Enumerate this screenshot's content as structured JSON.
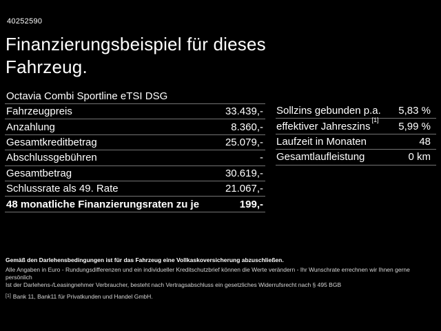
{
  "colors": {
    "background": "#000000",
    "text": "#ffffff",
    "divider": "#757575"
  },
  "page": {
    "vehicle_id": "40252590",
    "title_line1": "Finanzierungsbeispiel für dieses",
    "title_line2": "Fahrzeug.",
    "subtitle": "Octavia Combi Sportline eTSI DSG"
  },
  "tables": {
    "left": {
      "rows": [
        {
          "label": "Fahrzeugpreis",
          "value": "33.439,-"
        },
        {
          "label": "Anzahlung",
          "value": "8.360,-"
        },
        {
          "label": "Gesamtkreditbetrag",
          "value": "25.079,-"
        },
        {
          "label": "Abschlussgebühren",
          "value": "-"
        },
        {
          "label": "Gesamtbetrag",
          "value": "30.619,-"
        },
        {
          "label": "Schlussrate als 49. Rate",
          "value": "21.067,-"
        },
        {
          "label": "48 monatliche Finanzierungsraten zu je",
          "value": "199,-"
        }
      ]
    },
    "right": {
      "rows": [
        {
          "label": "Sollzins gebunden p.a.",
          "value": "5,83 %"
        },
        {
          "label": "effektiver Jahreszins",
          "sup": "[1]",
          "value": "5,99 %"
        },
        {
          "label": "Laufzeit in Monaten",
          "value": "48"
        },
        {
          "label": "Gesamtlaufleistung",
          "value": "0 km"
        }
      ]
    }
  },
  "footnotes": {
    "insurance_note": "Gemäß den Darlehensbedingungen ist für das Fahrzeug eine Vollkaskoversicherung abzuschließen.",
    "disclaimer": "Alle Angaben in Euro - Rundungsdifferenzen und ein individueller Kreditschutzbrief können die Werte verändern - Ihr Wunschrate errechnen wir Ihnen gerne persönlich",
    "withdrawal_note": "Ist der Darlehens-/Leasingnehmer Verbraucher, besteht nach Vertragsabschluss ein gesetzliches Widerrufsrecht nach § 495 BGB",
    "bank_marker": "[1]",
    "bank_note": "Bank 11, Bank11 für Privatkunden und Handel GmbH."
  }
}
